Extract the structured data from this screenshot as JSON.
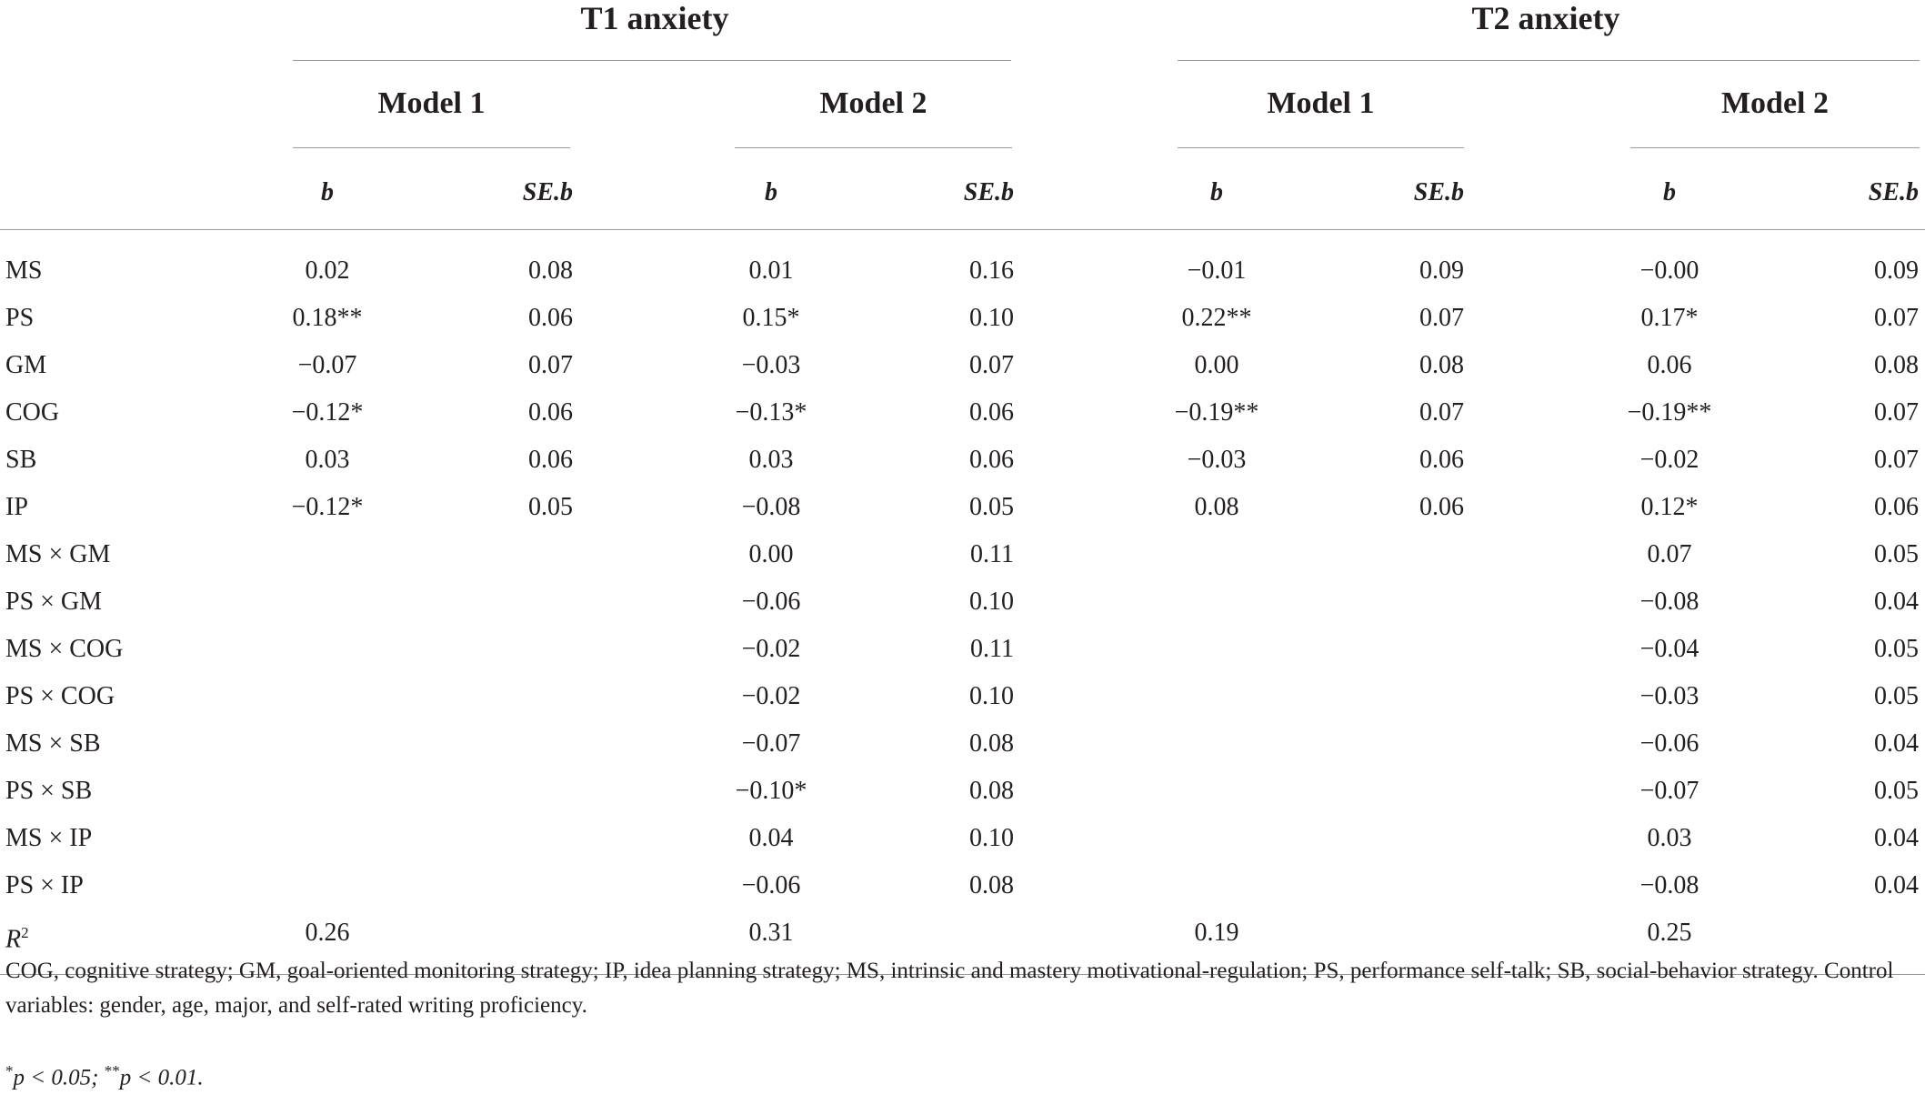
{
  "groups": [
    {
      "title": "T1 anxiety"
    },
    {
      "title": "T2 anxiety"
    }
  ],
  "models": [
    "Model 1",
    "Model 2",
    "Model 1",
    "Model 2"
  ],
  "col_headers": [
    "b",
    "SE.b",
    "b",
    "SE.b",
    "b",
    "SE.b",
    "b",
    "SE.b"
  ],
  "rows": [
    {
      "label": "MS",
      "v": [
        "0.02",
        "0.08",
        "0.01",
        "0.16",
        "−0.01",
        "0.09",
        "−0.00",
        "0.09"
      ]
    },
    {
      "label": "PS",
      "v": [
        "0.18**",
        "0.06",
        "0.15*",
        "0.10",
        "0.22**",
        "0.07",
        "0.17*",
        "0.07"
      ]
    },
    {
      "label": "GM",
      "v": [
        "−0.07",
        "0.07",
        "−0.03",
        "0.07",
        "0.00",
        "0.08",
        "0.06",
        "0.08"
      ]
    },
    {
      "label": "COG",
      "v": [
        "−0.12*",
        "0.06",
        "−0.13*",
        "0.06",
        "−0.19**",
        "0.07",
        "−0.19**",
        "0.07"
      ]
    },
    {
      "label": "SB",
      "v": [
        "0.03",
        "0.06",
        "0.03",
        "0.06",
        "−0.03",
        "0.06",
        "−0.02",
        "0.07"
      ]
    },
    {
      "label": "IP",
      "v": [
        "−0.12*",
        "0.05",
        "−0.08",
        "0.05",
        "0.08",
        "0.06",
        "0.12*",
        "0.06"
      ]
    },
    {
      "label": "MS × GM",
      "v": [
        "",
        "",
        "0.00",
        "0.11",
        "",
        "",
        "0.07",
        "0.05"
      ]
    },
    {
      "label": "PS × GM",
      "v": [
        "",
        "",
        "−0.06",
        "0.10",
        "",
        "",
        "−0.08",
        "0.04"
      ]
    },
    {
      "label": "MS × COG",
      "v": [
        "",
        "",
        "−0.02",
        "0.11",
        "",
        "",
        "−0.04",
        "0.05"
      ]
    },
    {
      "label": "PS × COG",
      "v": [
        "",
        "",
        "−0.02",
        "0.10",
        "",
        "",
        "−0.03",
        "0.05"
      ]
    },
    {
      "label": "MS × SB",
      "v": [
        "",
        "",
        "−0.07",
        "0.08",
        "",
        "",
        "−0.06",
        "0.04"
      ]
    },
    {
      "label": "PS × SB",
      "v": [
        "",
        "",
        "−0.10*",
        "0.08",
        "",
        "",
        "−0.07",
        "0.05"
      ]
    },
    {
      "label": "MS × IP",
      "v": [
        "",
        "",
        "0.04",
        "0.10",
        "",
        "",
        "0.03",
        "0.04"
      ]
    },
    {
      "label": "PS × IP",
      "v": [
        "",
        "",
        "−0.06",
        "0.08",
        "",
        "",
        "−0.08",
        "0.04"
      ]
    }
  ],
  "r2_row": {
    "label_base": "R",
    "label_sup": "2",
    "v": [
      "0.26",
      "",
      "0.31",
      "",
      "0.19",
      "",
      "0.25",
      ""
    ]
  },
  "notes": {
    "abbrev": "COG, cognitive strategy; GM, goal-oriented monitoring strategy; IP, idea planning strategy; MS, intrinsic and mastery motivational-regulation; PS, performance self-talk; SB, social-behavior strategy. Control variables: gender, age, major, and self-rated writing proficiency.",
    "sig_a_mark": "*",
    "sig_a_text": "p < 0.05; ",
    "sig_b_mark": "**",
    "sig_b_text": "p < 0.01."
  }
}
